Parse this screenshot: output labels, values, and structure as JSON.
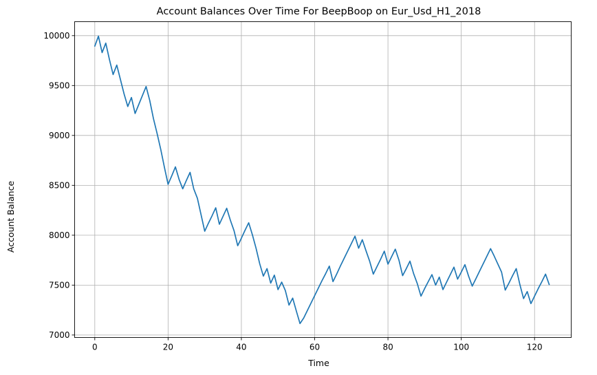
{
  "chart_data": {
    "type": "line",
    "title": "Account Balances Over Time For BeepBoop on Eur_Usd_H1_2018",
    "xlabel": "Time",
    "ylabel": "Account Balance",
    "xlim": [
      -5.5,
      130
    ],
    "ylim": [
      6975,
      10140
    ],
    "xticks": [
      0,
      20,
      40,
      60,
      80,
      100,
      120
    ],
    "yticks": [
      7000,
      7500,
      8000,
      8500,
      9000,
      9500,
      10000
    ],
    "grid": true,
    "line_color": "#1f77b4",
    "series": [
      {
        "points": [
          [
            0,
            9895
          ],
          [
            1,
            9995
          ],
          [
            2,
            9830
          ],
          [
            3,
            9925
          ],
          [
            4,
            9760
          ],
          [
            5,
            9610
          ],
          [
            6,
            9705
          ],
          [
            7,
            9560
          ],
          [
            8,
            9415
          ],
          [
            9,
            9290
          ],
          [
            10,
            9380
          ],
          [
            11,
            9220
          ],
          [
            12,
            9310
          ],
          [
            13,
            9400
          ],
          [
            14,
            9490
          ],
          [
            15,
            9350
          ],
          [
            16,
            9170
          ],
          [
            17,
            9020
          ],
          [
            18,
            8860
          ],
          [
            19,
            8680
          ],
          [
            20,
            8510
          ],
          [
            21,
            8595
          ],
          [
            22,
            8685
          ],
          [
            23,
            8560
          ],
          [
            24,
            8465
          ],
          [
            25,
            8550
          ],
          [
            26,
            8630
          ],
          [
            27,
            8465
          ],
          [
            28,
            8370
          ],
          [
            29,
            8205
          ],
          [
            30,
            8040
          ],
          [
            31,
            8120
          ],
          [
            32,
            8195
          ],
          [
            33,
            8275
          ],
          [
            34,
            8110
          ],
          [
            35,
            8190
          ],
          [
            36,
            8270
          ],
          [
            37,
            8150
          ],
          [
            38,
            8045
          ],
          [
            39,
            7895
          ],
          [
            40,
            7970
          ],
          [
            41,
            8050
          ],
          [
            42,
            8125
          ],
          [
            43,
            8005
          ],
          [
            44,
            7870
          ],
          [
            45,
            7715
          ],
          [
            46,
            7590
          ],
          [
            47,
            7665
          ],
          [
            48,
            7520
          ],
          [
            49,
            7600
          ],
          [
            50,
            7455
          ],
          [
            51,
            7530
          ],
          [
            52,
            7445
          ],
          [
            53,
            7300
          ],
          [
            54,
            7370
          ],
          [
            55,
            7240
          ],
          [
            56,
            7115
          ],
          [
            57,
            7170
          ],
          [
            58,
            7245
          ],
          [
            59,
            7320
          ],
          [
            60,
            7395
          ],
          [
            61,
            7470
          ],
          [
            62,
            7545
          ],
          [
            63,
            7615
          ],
          [
            64,
            7690
          ],
          [
            65,
            7535
          ],
          [
            66,
            7610
          ],
          [
            67,
            7690
          ],
          [
            68,
            7765
          ],
          [
            69,
            7840
          ],
          [
            70,
            7915
          ],
          [
            71,
            7990
          ],
          [
            72,
            7870
          ],
          [
            73,
            7955
          ],
          [
            74,
            7845
          ],
          [
            75,
            7740
          ],
          [
            76,
            7610
          ],
          [
            77,
            7685
          ],
          [
            78,
            7760
          ],
          [
            79,
            7840
          ],
          [
            80,
            7710
          ],
          [
            81,
            7785
          ],
          [
            82,
            7860
          ],
          [
            83,
            7750
          ],
          [
            84,
            7595
          ],
          [
            85,
            7665
          ],
          [
            86,
            7740
          ],
          [
            87,
            7615
          ],
          [
            88,
            7515
          ],
          [
            89,
            7390
          ],
          [
            90,
            7465
          ],
          [
            91,
            7535
          ],
          [
            92,
            7605
          ],
          [
            93,
            7500
          ],
          [
            94,
            7580
          ],
          [
            95,
            7455
          ],
          [
            96,
            7530
          ],
          [
            97,
            7605
          ],
          [
            98,
            7680
          ],
          [
            99,
            7560
          ],
          [
            100,
            7630
          ],
          [
            101,
            7705
          ],
          [
            102,
            7590
          ],
          [
            103,
            7490
          ],
          [
            104,
            7565
          ],
          [
            105,
            7640
          ],
          [
            106,
            7715
          ],
          [
            107,
            7790
          ],
          [
            108,
            7865
          ],
          [
            109,
            7790
          ],
          [
            110,
            7710
          ],
          [
            111,
            7630
          ],
          [
            112,
            7450
          ],
          [
            113,
            7520
          ],
          [
            114,
            7595
          ],
          [
            115,
            7665
          ],
          [
            116,
            7505
          ],
          [
            117,
            7365
          ],
          [
            118,
            7435
          ],
          [
            119,
            7315
          ],
          [
            120,
            7390
          ],
          [
            121,
            7465
          ],
          [
            122,
            7535
          ],
          [
            123,
            7610
          ],
          [
            124,
            7505
          ]
        ]
      }
    ]
  }
}
